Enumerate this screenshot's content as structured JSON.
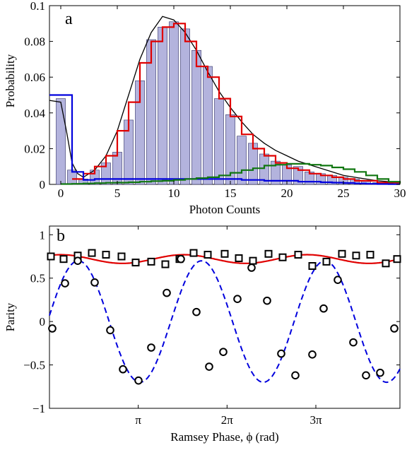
{
  "chart_data": [
    {
      "panel_label": "a",
      "type": "bar",
      "xlabel": "Photon Counts",
      "ylabel": "Probability",
      "xlim": [
        -1,
        30
      ],
      "ylim": [
        0,
        0.1
      ],
      "xticks": [
        0,
        5,
        10,
        15,
        20,
        25,
        30
      ],
      "yticks": [
        0,
        0.02,
        0.04,
        0.06,
        0.08,
        0.1
      ],
      "xtick_labels": [
        "0",
        "5",
        "10",
        "15",
        "20",
        "25",
        "30"
      ],
      "ytick_labels": [
        "0",
        "0.02",
        "0.04",
        "0.06",
        "0.08",
        "0.1"
      ],
      "colors": {
        "bars": "#b3b3dd",
        "bar_edge": "#333366",
        "black": "#000000",
        "red": "#e00000",
        "blue": "#0000dd",
        "green": "#117711"
      },
      "bars": {
        "x": [
          0,
          1,
          2,
          3,
          4,
          5,
          6,
          7,
          8,
          9,
          10,
          11,
          12,
          13,
          14,
          15,
          16,
          17,
          18,
          19,
          20,
          21,
          22,
          23,
          24,
          25,
          26,
          27,
          28,
          29
        ],
        "values": [
          0.048,
          0.008,
          0.003,
          0.008,
          0.012,
          0.018,
          0.036,
          0.058,
          0.081,
          0.088,
          0.091,
          0.087,
          0.075,
          0.066,
          0.048,
          0.039,
          0.027,
          0.023,
          0.017,
          0.013,
          0.011,
          0.01,
          0.007,
          0.006,
          0.005,
          0.004,
          0.003,
          0.002,
          0.001,
          0.0005
        ]
      },
      "series": [
        {
          "style": "black-line",
          "x": [
            -1,
            0,
            0.5,
            1,
            1.5,
            2,
            3,
            4,
            5,
            6,
            7,
            8,
            9,
            10,
            11,
            12,
            13,
            14,
            15,
            16,
            17,
            18,
            19,
            20,
            21,
            22,
            23,
            24,
            25,
            26,
            27,
            28,
            29,
            30
          ],
          "values": [
            0.047,
            0.046,
            0.03,
            0.012,
            0.006,
            0.004,
            0.008,
            0.016,
            0.03,
            0.05,
            0.07,
            0.085,
            0.094,
            0.092,
            0.085,
            0.075,
            0.063,
            0.052,
            0.043,
            0.035,
            0.028,
            0.023,
            0.019,
            0.016,
            0.013,
            0.011,
            0.009,
            0.007,
            0.005,
            0.004,
            0.003,
            0.002,
            0.0015,
            0.001
          ]
        },
        {
          "style": "red-step",
          "x": [
            1,
            2,
            3,
            4,
            5,
            6,
            7,
            8,
            9,
            10,
            11,
            12,
            13,
            14,
            15,
            16,
            17,
            18,
            19,
            20,
            21,
            22,
            23,
            24,
            25,
            26,
            27,
            28,
            29,
            30
          ],
          "values": [
            0.003,
            0.006,
            0.01,
            0.016,
            0.03,
            0.046,
            0.068,
            0.08,
            0.088,
            0.09,
            0.08,
            0.066,
            0.06,
            0.048,
            0.038,
            0.028,
            0.02,
            0.016,
            0.012,
            0.009,
            0.008,
            0.006,
            0.005,
            0.004,
            0.003,
            0.002,
            0.002,
            0.001,
            0.001,
            0.0005
          ]
        },
        {
          "style": "blue-step",
          "x": [
            -1,
            0,
            0.5,
            1,
            2,
            3,
            4,
            5,
            6,
            7,
            8,
            9,
            10,
            11,
            12,
            13,
            14,
            15,
            16,
            17,
            18,
            19,
            20,
            21,
            22,
            23,
            24,
            25,
            26,
            27,
            28,
            29,
            30
          ],
          "values": [
            0.05,
            0.05,
            0.05,
            0.007,
            0.0025,
            0.003,
            0.003,
            0.003,
            0.003,
            0.003,
            0.003,
            0.003,
            0.003,
            0.003,
            0.003,
            0.003,
            0.003,
            0.003,
            0.0025,
            0.0025,
            0.002,
            0.002,
            0.002,
            0.0015,
            0.0015,
            0.0012,
            0.001,
            0.0008,
            0.0005,
            0.0003,
            0.0002,
            0.0001,
            0.0001
          ]
        },
        {
          "style": "green-step",
          "x": [
            0,
            1,
            2,
            3,
            4,
            5,
            6,
            7,
            8,
            9,
            10,
            11,
            12,
            13,
            14,
            15,
            16,
            17,
            18,
            19,
            20,
            21,
            22,
            23,
            24,
            25,
            26,
            27,
            28,
            29,
            30
          ],
          "values": [
            0.0002,
            0.0003,
            0.0005,
            0.0007,
            0.0009,
            0.001,
            0.0012,
            0.0015,
            0.0018,
            0.002,
            0.0025,
            0.003,
            0.0035,
            0.004,
            0.005,
            0.0065,
            0.008,
            0.009,
            0.0105,
            0.011,
            0.0115,
            0.0115,
            0.011,
            0.0105,
            0.0095,
            0.0085,
            0.007,
            0.005,
            0.003,
            0.0015,
            0.0005
          ]
        }
      ]
    },
    {
      "panel_label": "b",
      "type": "scatter",
      "xlabel": "Ramsey Phase, ϕ (rad)",
      "ylabel": "Parity",
      "xlim": [
        0,
        12.4
      ],
      "ylim": [
        -1,
        1.1
      ],
      "xticks": [
        3.1416,
        6.2832,
        9.4248
      ],
      "xtick_labels": [
        "π",
        "2π",
        "3π"
      ],
      "yticks": [
        -1,
        -0.5,
        0,
        0.5,
        1
      ],
      "ytick_labels": [
        "−1",
        "−0.5",
        "0",
        "0.5",
        "1"
      ],
      "colors": {
        "squares": "#000000",
        "circles": "#000000",
        "red_fit": "#e00000",
        "blue_fit": "#0000dd"
      },
      "series": [
        {
          "style": "squares",
          "x": [
            0.05,
            0.5,
            1.0,
            1.5,
            2.0,
            2.55,
            3.05,
            3.6,
            4.1,
            4.6,
            5.1,
            5.6,
            6.2,
            6.7,
            7.2,
            7.75,
            8.25,
            8.8,
            9.3,
            9.8,
            10.35,
            10.85,
            11.35,
            11.9,
            12.3
          ],
          "values": [
            0.75,
            0.72,
            0.76,
            0.79,
            0.77,
            0.75,
            0.68,
            0.69,
            0.66,
            0.72,
            0.79,
            0.77,
            0.78,
            0.73,
            0.7,
            0.78,
            0.74,
            0.77,
            0.64,
            0.69,
            0.78,
            0.76,
            0.77,
            0.67,
            0.72
          ]
        },
        {
          "style": "circles",
          "x": [
            0.1,
            0.55,
            1.0,
            1.6,
            2.15,
            2.6,
            3.15,
            3.6,
            4.15,
            4.65,
            5.2,
            5.65,
            6.15,
            6.65,
            7.15,
            7.7,
            8.2,
            8.7,
            9.3,
            9.7,
            10.2,
            10.75,
            11.2,
            11.7,
            12.2
          ],
          "values": [
            -0.08,
            0.44,
            0.7,
            0.45,
            -0.1,
            -0.55,
            -0.68,
            -0.3,
            0.33,
            0.72,
            0.11,
            -0.52,
            -0.35,
            0.26,
            0.62,
            0.24,
            -0.37,
            -0.62,
            -0.38,
            0.15,
            0.48,
            -0.24,
            -0.62,
            -0.59,
            -0.08
          ]
        }
      ],
      "fits": [
        {
          "style": "red-solid",
          "form": "0.72 + 0.05*sin(1.44*x + 1.0)"
        },
        {
          "style": "blue-dashed",
          "form": "0.70*sin(1.44*x + 0.1)"
        }
      ]
    }
  ]
}
